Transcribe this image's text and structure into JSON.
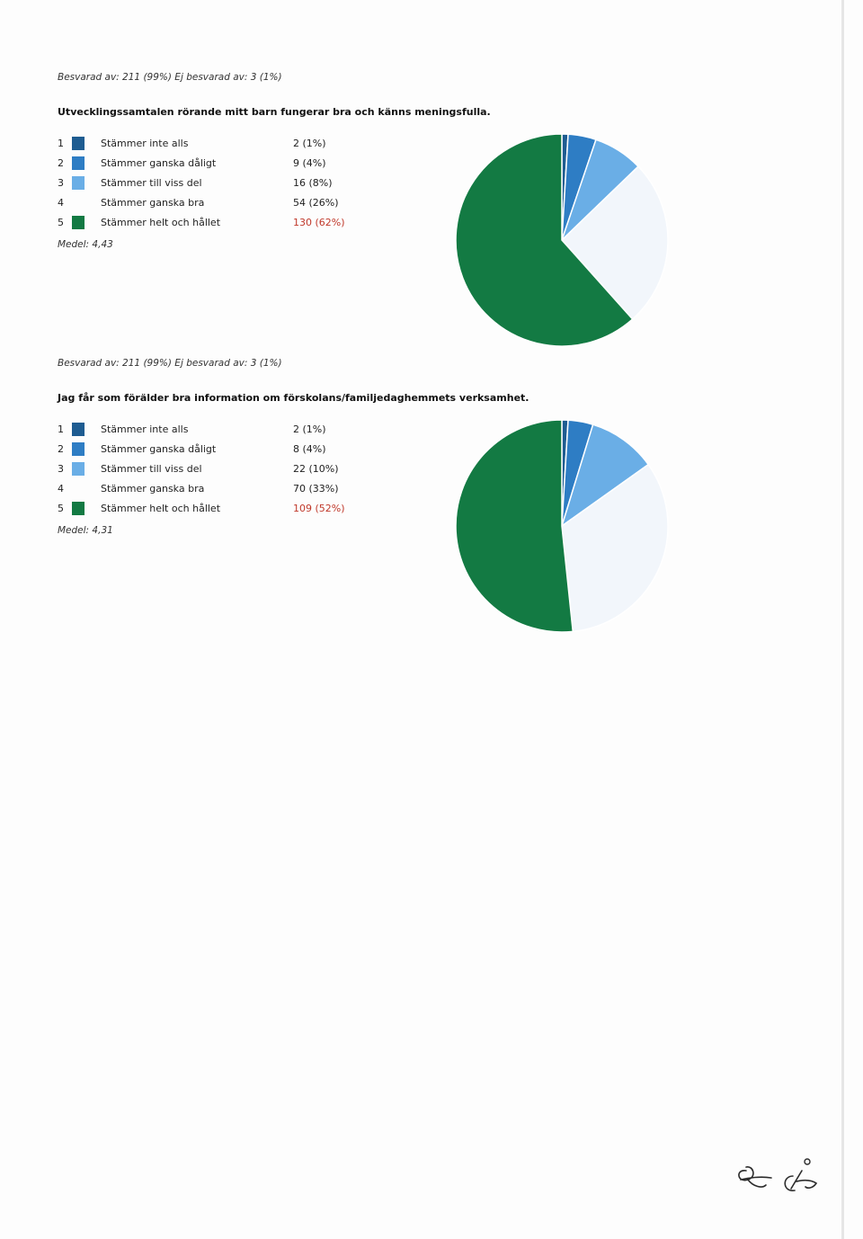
{
  "colors": {
    "opt1": "#1e5c91",
    "opt2": "#2e7dc4",
    "opt3": "#6aaee6",
    "opt4": "#f2f6fb",
    "opt5": "#137a43",
    "highlight": "#c0392b"
  },
  "chart_data": [
    {
      "type": "pie",
      "answered_text": "Besvarad av: 211 (99%) Ej besvarad av: 3 (1%)",
      "question": "Utvecklingssamtalen rörande mitt barn fungerar bra och känns meningsfulla.",
      "mean_text": "Medel: 4,43",
      "legend": [
        {
          "num": "1",
          "label": "Stämmer inte alls",
          "count_text": "2 (1%)",
          "value": 2,
          "pct": 1
        },
        {
          "num": "2",
          "label": "Stämmer ganska dåligt",
          "count_text": "9 (4%)",
          "value": 9,
          "pct": 4
        },
        {
          "num": "3",
          "label": "Stämmer till viss del",
          "count_text": "16 (8%)",
          "value": 16,
          "pct": 8
        },
        {
          "num": "4",
          "label": "Stämmer ganska bra",
          "count_text": "54 (26%)",
          "value": 54,
          "pct": 26
        },
        {
          "num": "5",
          "label": "Stämmer helt och hållet",
          "count_text": "130 (62%)",
          "value": 130,
          "pct": 62
        }
      ],
      "highlighted_index": 4
    },
    {
      "type": "pie",
      "answered_text": "Besvarad av: 211 (99%) Ej besvarad av: 3 (1%)",
      "question": "Jag får som förälder bra information om förskolans/familjedaghemmets verksamhet.",
      "mean_text": "Medel: 4,31",
      "legend": [
        {
          "num": "1",
          "label": "Stämmer inte alls",
          "count_text": "2 (1%)",
          "value": 2,
          "pct": 1
        },
        {
          "num": "2",
          "label": "Stämmer ganska dåligt",
          "count_text": "8 (4%)",
          "value": 8,
          "pct": 4
        },
        {
          "num": "3",
          "label": "Stämmer till viss del",
          "count_text": "22 (10%)",
          "value": 22,
          "pct": 10
        },
        {
          "num": "4",
          "label": "Stämmer ganska bra",
          "count_text": "70 (33%)",
          "value": 70,
          "pct": 33
        },
        {
          "num": "5",
          "label": "Stämmer helt och hållet",
          "count_text": "109 (52%)",
          "value": 109,
          "pct": 52
        }
      ],
      "highlighted_index": 4
    }
  ]
}
